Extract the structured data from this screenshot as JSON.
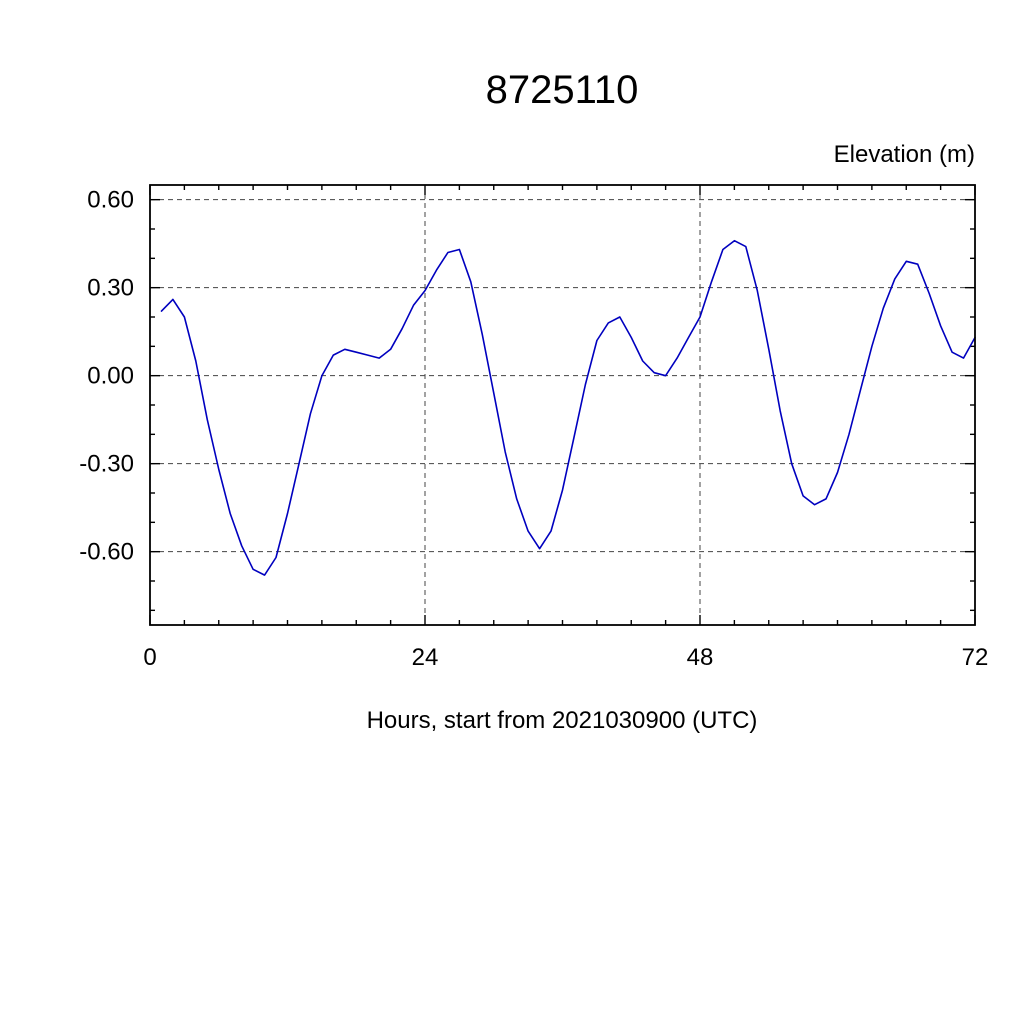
{
  "page": {
    "background": "#ffffff"
  },
  "chart_data": {
    "type": "line",
    "title": "8725110",
    "ylabel": "Elevation (m)",
    "xlabel": "Hours, start from 2021030900 (UTC)",
    "line_color": "#0000bf",
    "frame_color": "#000000",
    "grid_color": "#444444",
    "grid": true,
    "grid_style": "dashed",
    "xlim": [
      0,
      72
    ],
    "ylim": [
      -0.85,
      0.65
    ],
    "xticks": [
      0,
      24,
      48,
      72
    ],
    "xtick_labels": [
      "0",
      "24",
      "48",
      "72"
    ],
    "yticks": [
      0.6,
      0.3,
      0.0,
      -0.3,
      -0.6
    ],
    "ytick_labels": [
      "0.60",
      "0.30",
      "0.00",
      "-0.30",
      "-0.60"
    ],
    "x_minor_step": 3,
    "y_minor_step": 0.1,
    "x": [
      1,
      2,
      3,
      4,
      5,
      6,
      7,
      8,
      9,
      10,
      11,
      12,
      13,
      14,
      15,
      16,
      17,
      18,
      19,
      20,
      21,
      22,
      23,
      24,
      25,
      26,
      27,
      28,
      29,
      30,
      31,
      32,
      33,
      34,
      35,
      36,
      37,
      38,
      39,
      40,
      41,
      42,
      43,
      44,
      45,
      46,
      47,
      48,
      49,
      50,
      51,
      52,
      53,
      54,
      55,
      56,
      57,
      58,
      59,
      60,
      61,
      62,
      63,
      64,
      65,
      66,
      67,
      68,
      69,
      70,
      71,
      72
    ],
    "series": [
      {
        "name": "elevation",
        "values": [
          0.22,
          0.26,
          0.2,
          0.05,
          -0.15,
          -0.32,
          -0.47,
          -0.58,
          -0.66,
          -0.68,
          -0.62,
          -0.47,
          -0.3,
          -0.13,
          0.0,
          0.07,
          0.09,
          0.08,
          0.07,
          0.06,
          0.09,
          0.16,
          0.24,
          0.29,
          0.36,
          0.42,
          0.43,
          0.32,
          0.14,
          -0.06,
          -0.26,
          -0.42,
          -0.53,
          -0.59,
          -0.53,
          -0.39,
          -0.21,
          -0.03,
          0.12,
          0.18,
          0.2,
          0.13,
          0.05,
          0.01,
          0.0,
          0.06,
          0.13,
          0.2,
          0.32,
          0.43,
          0.46,
          0.44,
          0.29,
          0.09,
          -0.12,
          -0.3,
          -0.41,
          -0.44,
          -0.42,
          -0.33,
          -0.2,
          -0.05,
          0.1,
          0.23,
          0.33,
          0.39,
          0.38,
          0.28,
          0.17,
          0.08,
          0.06,
          0.13
        ]
      }
    ]
  }
}
